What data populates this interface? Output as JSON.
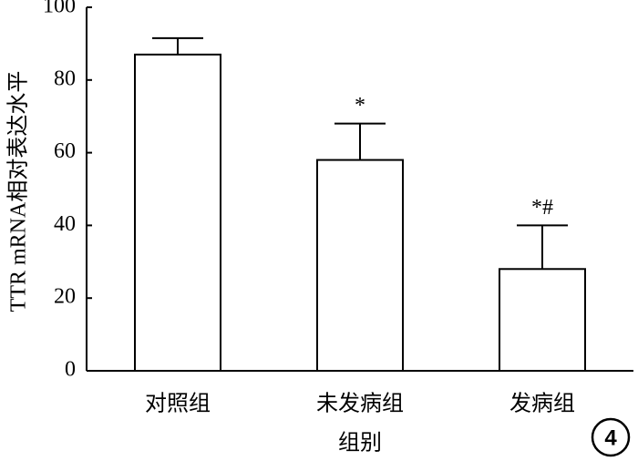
{
  "chart_data": {
    "type": "bar",
    "x_label": "组别",
    "y_label": "TTR mRNA相对表达水平",
    "categories": [
      "对照组",
      "未发病组",
      "发病组"
    ],
    "values": [
      87,
      58,
      28
    ],
    "errors": [
      4.5,
      10,
      12
    ],
    "color": "#ffffff",
    "ylim": [
      0,
      100
    ],
    "yticks": [
      0,
      20,
      40,
      60,
      80,
      100
    ],
    "annotations": [
      {
        "category": "未发病组",
        "text": "*"
      },
      {
        "category": "发病组",
        "text": "*#"
      }
    ],
    "panel_label": "4"
  }
}
